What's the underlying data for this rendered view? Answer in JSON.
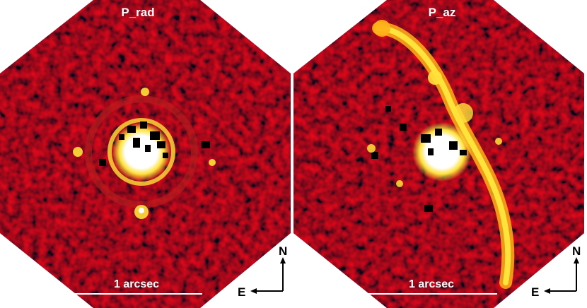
{
  "panels": [
    {
      "title": "P_rad",
      "scale_bar_label": "1 arcsec"
    },
    {
      "title": "P_az",
      "scale_bar_label": "1 arcsec"
    }
  ],
  "compass": {
    "north_label": "N",
    "east_label": "E"
  },
  "colors": {
    "background_blue": "#3b3bb0",
    "noise_red": "#b81e1e",
    "bright_yellow": "#ffe23a",
    "saturated_white": "#ffffff",
    "masked_black": "#000000",
    "text": "#ffffff"
  }
}
